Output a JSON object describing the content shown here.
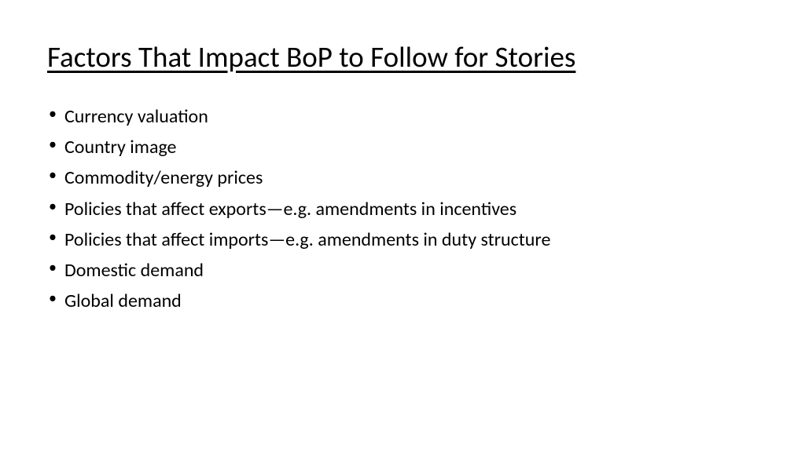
{
  "slide": {
    "title": "Factors That Impact BoP to Follow for Stories",
    "title_fontsize": 37,
    "title_underline": true,
    "bullets": [
      "Currency valuation",
      "Country image",
      "Commodity/energy prices",
      "Policies that affect exports—e.g. amendments in incentives",
      "Policies that affect imports—e.g. amendments in duty structure",
      "Domestic demand",
      "Global demand"
    ],
    "bullet_fontsize": 24,
    "background_color": "#ffffff",
    "text_color": "#000000",
    "font_family": "Calibri"
  }
}
